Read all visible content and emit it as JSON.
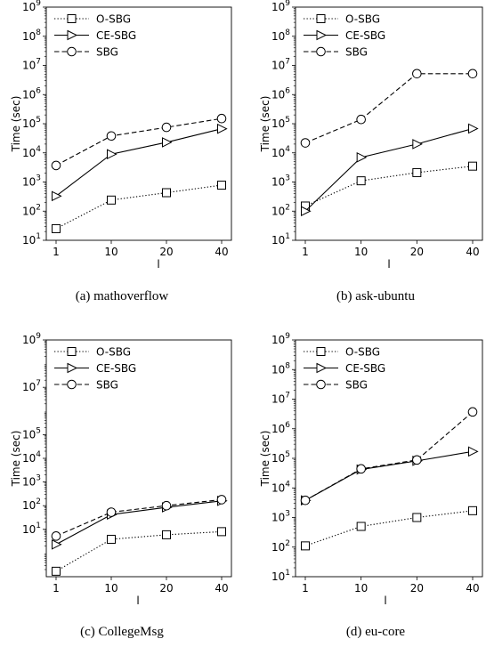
{
  "legend": {
    "osbg": "O-SBG",
    "cesbg": "CE-SBG",
    "sbg": "SBG"
  },
  "chart_data": [
    {
      "type": "line",
      "caption": "(a)  mathoverflow",
      "xlabel": "l",
      "ylabel": "Time (sec)",
      "yscale": "log",
      "ylim": [
        10,
        1000000000
      ],
      "x": [
        1,
        10,
        20,
        40
      ],
      "legend_position": "top-left",
      "series": [
        {
          "name": "O-SBG",
          "values": [
            25,
            240,
            430,
            780
          ],
          "marker": "square",
          "dash": "dotted"
        },
        {
          "name": "CE-SBG",
          "values": [
            330,
            9000,
            23000,
            67000
          ],
          "marker": "triangle-right",
          "dash": "solid"
        },
        {
          "name": "SBG",
          "values": [
            3700,
            38000,
            75000,
            150000
          ],
          "marker": "circle",
          "dash": "dashed"
        }
      ]
    },
    {
      "type": "line",
      "caption": "(b)  ask-ubuntu",
      "xlabel": "l",
      "ylabel": "Time (sec)",
      "yscale": "log",
      "ylim": [
        10,
        1000000000
      ],
      "x": [
        1,
        10,
        20,
        40
      ],
      "legend_position": "top-left",
      "series": [
        {
          "name": "O-SBG",
          "values": [
            150,
            1100,
            2100,
            3500
          ],
          "marker": "square",
          "dash": "dotted"
        },
        {
          "name": "CE-SBG",
          "values": [
            100,
            7000,
            20000,
            68000
          ],
          "marker": "triangle-right",
          "dash": "solid"
        },
        {
          "name": "SBG",
          "values": [
            22000,
            140000,
            5200000,
            5200000
          ],
          "marker": "circle",
          "dash": "dashed"
        }
      ]
    },
    {
      "type": "line",
      "caption": "(c)  CollegeMsg",
      "xlabel": "l",
      "ylabel": "Time (sec)",
      "yscale": "log",
      "ylim": [
        0.1,
        1000000000
      ],
      "yticks": [
        10,
        100,
        1000,
        10000,
        100000,
        10000000,
        1000000000
      ],
      "x": [
        1,
        10,
        20,
        40
      ],
      "legend_position": "top-left",
      "series": [
        {
          "name": "O-SBG",
          "values": [
            0.17,
            3.8,
            5.9,
            8.0
          ],
          "marker": "square",
          "dash": "dotted"
        },
        {
          "name": "CE-SBG",
          "values": [
            2.3,
            42,
            85,
            160
          ],
          "marker": "triangle-right",
          "dash": "solid"
        },
        {
          "name": "SBG",
          "values": [
            5.2,
            53,
            100,
            180
          ],
          "marker": "circle",
          "dash": "dashed"
        }
      ]
    },
    {
      "type": "line",
      "caption": "(d)  eu-core",
      "xlabel": "l",
      "ylabel": "Time (sec)",
      "yscale": "log",
      "ylim": [
        10,
        1000000000
      ],
      "x": [
        1,
        10,
        20,
        40
      ],
      "legend_position": "top-left",
      "series": [
        {
          "name": "O-SBG",
          "values": [
            110,
            500,
            1000,
            1700
          ],
          "marker": "square",
          "dash": "dotted"
        },
        {
          "name": "CE-SBG",
          "values": [
            3800,
            42000,
            82000,
            170000
          ],
          "marker": "triangle-right",
          "dash": "solid"
        },
        {
          "name": "SBG",
          "values": [
            3800,
            44000,
            88000,
            3700000
          ],
          "marker": "circle",
          "dash": "dashed"
        }
      ]
    }
  ]
}
